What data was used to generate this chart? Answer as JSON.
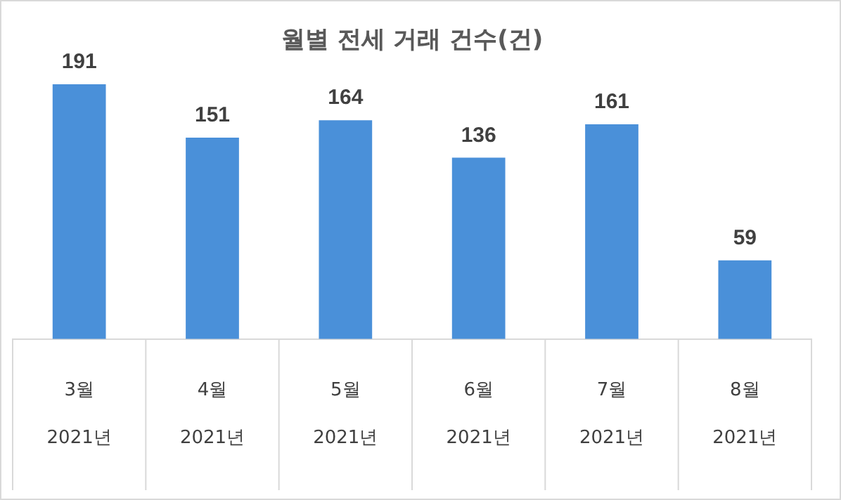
{
  "chart_data": {
    "type": "bar",
    "title": "월별 전세 거래 건수(건)",
    "categories": [
      "3월\n2021년",
      "4월\n2021년",
      "5월\n2021년",
      "6월\n2021년",
      "7월\n2021년",
      "8월\n2021년"
    ],
    "values": [
      191,
      151,
      164,
      136,
      161,
      59
    ],
    "color": "#4a90d9",
    "data_labels": true,
    "legend": false
  }
}
